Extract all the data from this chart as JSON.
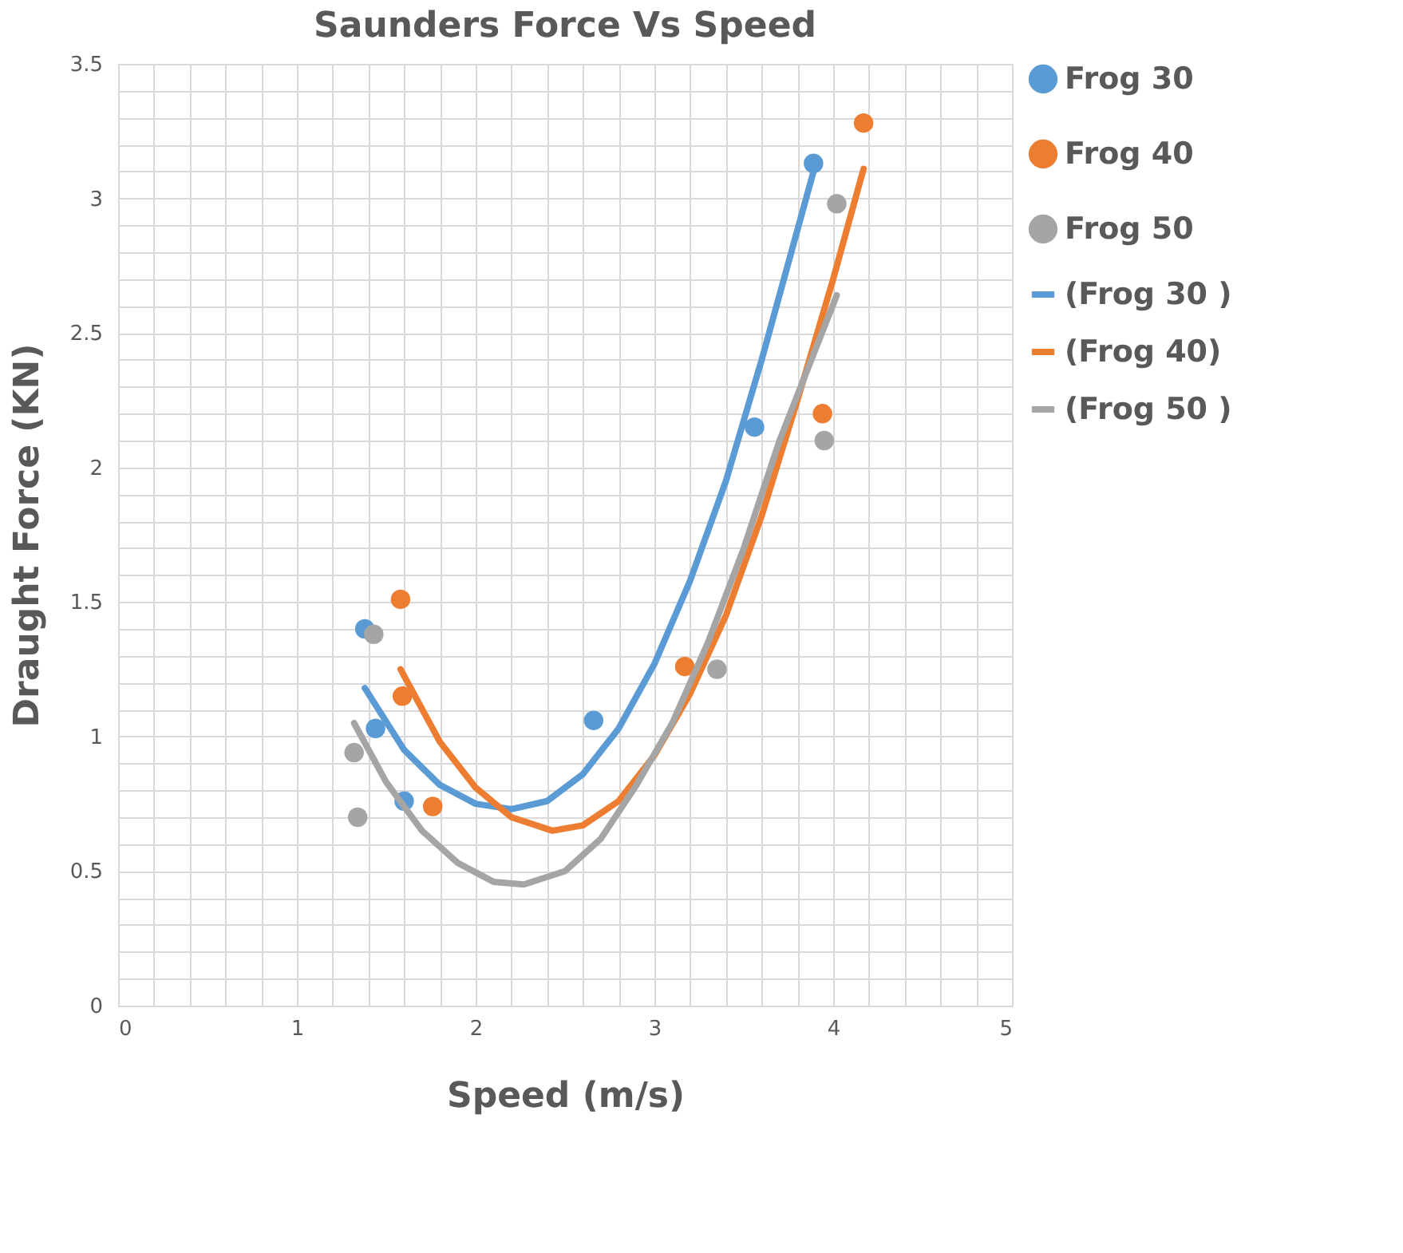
{
  "chart_data": {
    "type": "scatter",
    "title": "Saunders Force Vs Speed",
    "xlabel": "Speed (m/s)",
    "ylabel": "Draught Force (KN)",
    "xlim": [
      0,
      5
    ],
    "ylim": [
      0,
      3.5
    ],
    "xticks": [
      0,
      {
        "value": 0.2,
        "label": null
      },
      {
        "value": 0.4,
        "label": null
      },
      {
        "value": 0.6,
        "label": null
      },
      {
        "value": 0.8,
        "label": null
      },
      1,
      {
        "value": 1.2,
        "label": null
      },
      {
        "value": 1.4,
        "label": null
      },
      {
        "value": 1.6,
        "label": null
      },
      {
        "value": 1.8,
        "label": null
      },
      2,
      {
        "value": 2.2,
        "label": null
      },
      {
        "value": 2.4,
        "label": null
      },
      {
        "value": 2.6,
        "label": null
      },
      {
        "value": 2.8,
        "label": null
      },
      3,
      {
        "value": 3.2,
        "label": null
      },
      {
        "value": 3.4,
        "label": null
      },
      {
        "value": 3.6,
        "label": null
      },
      {
        "value": 3.8,
        "label": null
      },
      4,
      {
        "value": 4.2,
        "label": null
      },
      {
        "value": 4.4,
        "label": null
      },
      {
        "value": 4.6,
        "label": null
      },
      {
        "value": 4.8,
        "label": null
      },
      5
    ],
    "yticks": [
      0,
      {
        "value": 0.1,
        "label": null
      },
      {
        "value": 0.2,
        "label": null
      },
      {
        "value": 0.3,
        "label": null
      },
      {
        "value": 0.4,
        "label": null
      },
      0.5,
      {
        "value": 0.6,
        "label": null
      },
      {
        "value": 0.7,
        "label": null
      },
      {
        "value": 0.8,
        "label": null
      },
      {
        "value": 0.9,
        "label": null
      },
      1,
      {
        "value": 1.1,
        "label": null
      },
      {
        "value": 1.2,
        "label": null
      },
      {
        "value": 1.3,
        "label": null
      },
      {
        "value": 1.4,
        "label": null
      },
      1.5,
      {
        "value": 1.6,
        "label": null
      },
      {
        "value": 1.7,
        "label": null
      },
      {
        "value": 1.8,
        "label": null
      },
      {
        "value": 1.9,
        "label": null
      },
      2,
      {
        "value": 2.1,
        "label": null
      },
      {
        "value": 2.2,
        "label": null
      },
      {
        "value": 2.3,
        "label": null
      },
      {
        "value": 2.4,
        "label": null
      },
      2.5,
      {
        "value": 2.6,
        "label": null
      },
      {
        "value": 2.7,
        "label": null
      },
      {
        "value": 2.8,
        "label": null
      },
      {
        "value": 2.9,
        "label": null
      },
      3,
      {
        "value": 3.1,
        "label": null
      },
      {
        "value": 3.2,
        "label": null
      },
      {
        "value": 3.3,
        "label": null
      },
      {
        "value": 3.4,
        "label": null
      },
      3.5
    ],
    "grid": true,
    "legend": "right",
    "series": [
      {
        "name": "Frog 30",
        "marker": "circle",
        "color": "#5b9bd5",
        "x": [
          1.38,
          1.44,
          1.6,
          2.66,
          3.56,
          3.89
        ],
        "values": [
          1.4,
          1.03,
          0.76,
          1.06,
          2.15,
          3.13
        ]
      },
      {
        "name": "Frog 40",
        "marker": "circle",
        "color": "#ed7d31",
        "x": [
          1.58,
          1.59,
          1.76,
          3.17,
          3.94,
          4.17
        ],
        "values": [
          1.51,
          1.15,
          0.74,
          1.26,
          2.2,
          3.28
        ]
      },
      {
        "name": "Frog 50",
        "marker": "circle",
        "color": "#a5a5a5",
        "x": [
          1.34,
          1.32,
          1.43,
          3.35,
          3.95,
          4.02
        ],
        "values": [
          0.7,
          0.94,
          1.38,
          1.25,
          2.1,
          2.98
        ]
      },
      {
        "name": "(Frog 30 )",
        "type": "line",
        "line_style": "solid",
        "color": "#5b9bd5",
        "x": [
          1.38,
          1.6,
          1.8,
          2.0,
          2.2,
          2.4,
          2.6,
          2.8,
          3.0,
          3.2,
          3.4,
          3.6,
          3.89
        ],
        "values": [
          1.18,
          0.95,
          0.82,
          0.75,
          0.73,
          0.76,
          0.86,
          1.03,
          1.27,
          1.58,
          1.95,
          2.4,
          3.1
        ]
      },
      {
        "name": "(Frog 40)",
        "type": "line",
        "line_style": "solid",
        "color": "#ed7d31",
        "x": [
          1.58,
          1.8,
          2.0,
          2.2,
          2.43,
          2.6,
          2.8,
          3.0,
          3.2,
          3.4,
          3.6,
          3.8,
          4.0,
          4.17
        ],
        "values": [
          1.25,
          0.98,
          0.81,
          0.7,
          0.65,
          0.67,
          0.76,
          0.93,
          1.16,
          1.45,
          1.82,
          2.25,
          2.7,
          3.11
        ]
      },
      {
        "name": "(Frog 50 )",
        "type": "line",
        "line_style": "solid",
        "color": "#a5a5a5",
        "x": [
          1.32,
          1.5,
          1.7,
          1.9,
          2.1,
          2.27,
          2.5,
          2.7,
          2.9,
          3.1,
          3.3,
          3.5,
          3.7,
          4.02
        ],
        "values": [
          1.05,
          0.83,
          0.65,
          0.53,
          0.46,
          0.45,
          0.5,
          0.62,
          0.82,
          1.05,
          1.35,
          1.7,
          2.1,
          2.64
        ]
      }
    ]
  }
}
